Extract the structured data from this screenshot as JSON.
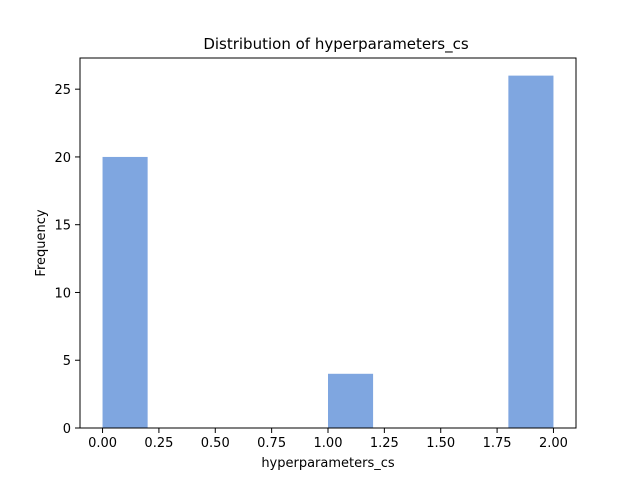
{
  "chart_data": {
    "type": "bar",
    "title": "Distribution of  hyperparameters_cs",
    "xlabel": "hyperparameters_cs",
    "ylabel": "Frequency",
    "bins": [
      {
        "x0": 0.0,
        "x1": 0.2,
        "count": 20
      },
      {
        "x0": 0.2,
        "x1": 0.4,
        "count": 0
      },
      {
        "x0": 0.4,
        "x1": 0.6,
        "count": 0
      },
      {
        "x0": 0.6,
        "x1": 0.8,
        "count": 0
      },
      {
        "x0": 0.8,
        "x1": 1.0,
        "count": 0
      },
      {
        "x0": 1.0,
        "x1": 1.2,
        "count": 4
      },
      {
        "x0": 1.2,
        "x1": 1.4,
        "count": 0
      },
      {
        "x0": 1.4,
        "x1": 1.6,
        "count": 0
      },
      {
        "x0": 1.6,
        "x1": 1.8,
        "count": 0
      },
      {
        "x0": 1.8,
        "x1": 2.0,
        "count": 26
      }
    ],
    "xlim": [
      -0.1,
      2.1
    ],
    "ylim": [
      0,
      27.3
    ],
    "xticks": [
      0.0,
      0.25,
      0.5,
      0.75,
      1.0,
      1.25,
      1.5,
      1.75,
      2.0
    ],
    "xtick_labels": [
      "0.00",
      "0.25",
      "0.50",
      "0.75",
      "1.00",
      "1.25",
      "1.50",
      "1.75",
      "2.00"
    ],
    "yticks": [
      0,
      5,
      10,
      15,
      20,
      25
    ],
    "ytick_labels": [
      "0",
      "5",
      "10",
      "15",
      "20",
      "25"
    ],
    "bar_color": "#7fa6e0",
    "grid": false,
    "legend": "none"
  }
}
